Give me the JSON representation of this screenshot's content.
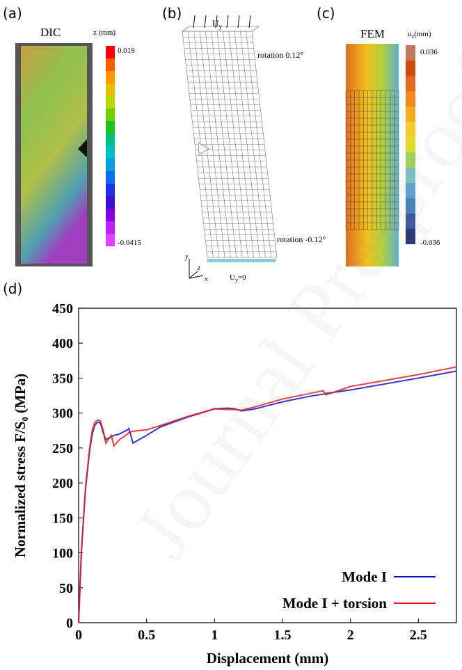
{
  "panels": {
    "a": {
      "label": "(a)",
      "title": "DIC",
      "unit": "z (mm)",
      "max": "0.019",
      "min": "-0.0415"
    },
    "b": {
      "label": "(b)",
      "load_top": {
        "main": "U",
        "sub": "y"
      },
      "rotation_top": "rotation 0.12°",
      "rotation_bottom": "rotation -0.12°",
      "load_bottom": {
        "main": "U",
        "sub": "y",
        "rest": "=0"
      },
      "axis_x": "x",
      "axis_y": "y",
      "axis_z": "z"
    },
    "c": {
      "label": "(c)",
      "title": "FEM",
      "unit": {
        "main": "u",
        "sub": "z",
        "rest": "(mm)"
      },
      "max": "0.036",
      "min": "-0.036"
    },
    "d": {
      "label": "(d)"
    }
  },
  "watermark": "Journal Pre-proof",
  "chart_data": {
    "type": "line",
    "xlabel": "Displacement (mm)",
    "ylabel": "Normalized stress F/S₀ (MPa)",
    "x": [
      0,
      0.02,
      0.05,
      0.08,
      0.1,
      0.12,
      0.14,
      0.16,
      0.18,
      0.2,
      0.24,
      0.26,
      0.3,
      0.36,
      0.37,
      0.4,
      0.5,
      0.6,
      0.8,
      1.0,
      1.1,
      1.15,
      1.2,
      1.3,
      1.5,
      1.7,
      1.8,
      1.82,
      2.0,
      2.5,
      2.78
    ],
    "series": [
      {
        "name": "Mode I",
        "color": "#1010c8",
        "values": [
          0,
          100,
          190,
          245,
          270,
          283,
          287,
          286,
          272,
          262,
          266,
          268,
          270,
          276,
          278,
          257,
          268,
          280,
          294,
          306,
          307,
          306,
          303,
          306,
          316,
          324,
          327,
          328,
          333,
          350,
          360
        ]
      },
      {
        "name": "Mode I + torsion",
        "color": "#e0201c",
        "values": [
          0,
          100,
          192,
          248,
          275,
          287,
          290,
          289,
          276,
          257,
          268,
          253,
          262,
          270,
          272,
          274,
          276,
          282,
          295,
          306,
          305,
          305,
          304,
          309,
          320,
          328,
          332,
          326,
          338,
          355,
          366
        ]
      }
    ],
    "xlim": [
      0,
      2.78
    ],
    "ylim": [
      0,
      450
    ],
    "xticks": [
      0,
      0.5,
      1,
      1.5,
      2,
      2.5
    ],
    "yticks": [
      0,
      50,
      100,
      150,
      200,
      250,
      300,
      350,
      400,
      450
    ],
    "legend": "lower right"
  }
}
